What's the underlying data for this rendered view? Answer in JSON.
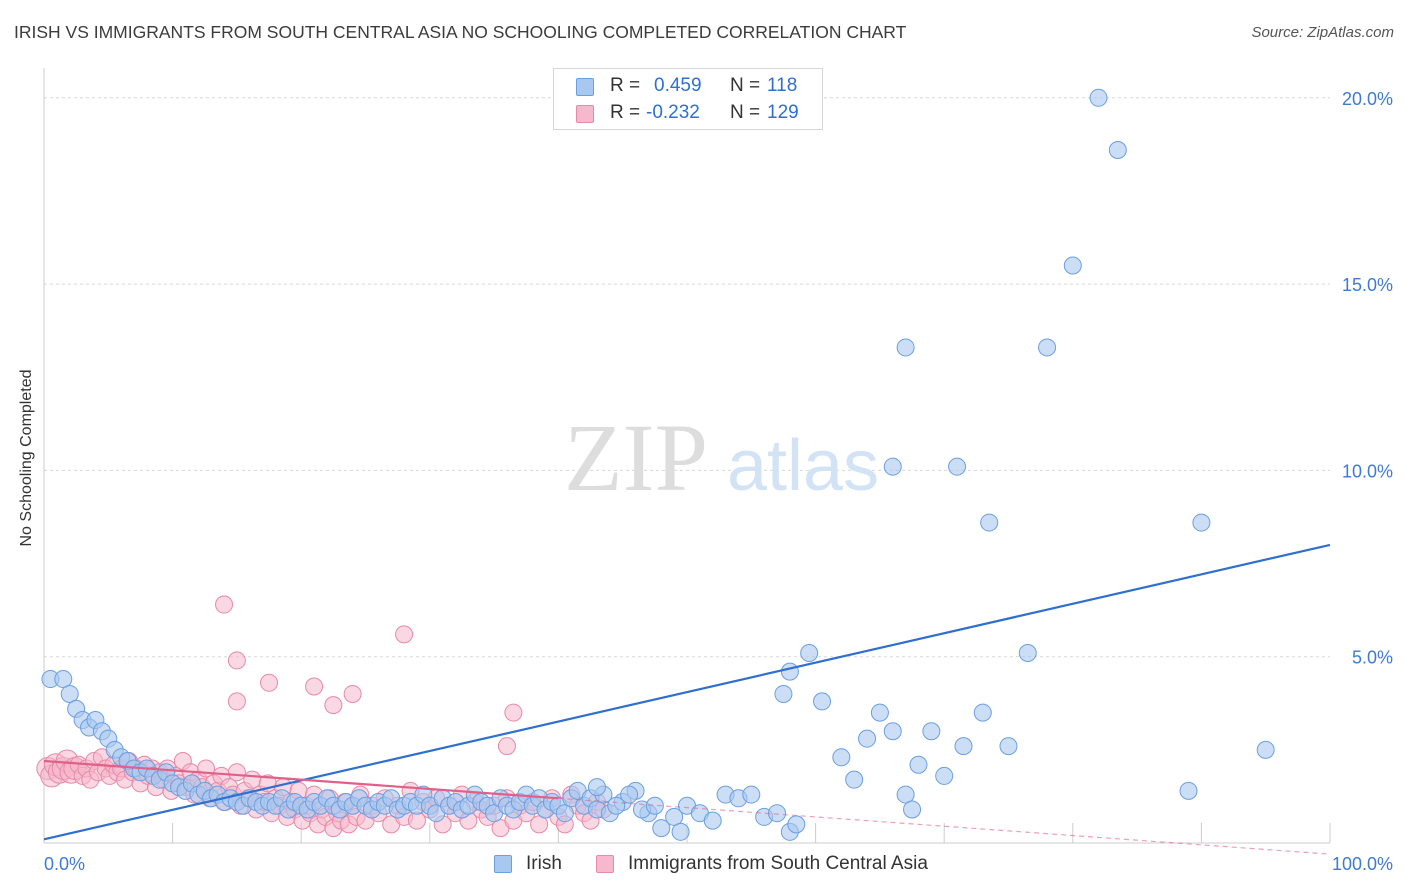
{
  "header": {
    "title": "IRISH VS IMMIGRANTS FROM SOUTH CENTRAL ASIA NO SCHOOLING COMPLETED CORRELATION CHART",
    "source": "Source: ZipAtlas.com"
  },
  "legend": {
    "rows": [
      {
        "r_label": "R =",
        "r_value": "0.459",
        "n_label": "N =",
        "n_value": "118"
      },
      {
        "r_label": "R =",
        "r_value": "-0.232",
        "n_label": "N =",
        "n_value": "129"
      }
    ],
    "bottom": [
      "Irish",
      "Immigrants from South Central Asia"
    ]
  },
  "watermark": {
    "zip": "ZIP",
    "atlas": "atlas"
  },
  "colors": {
    "irish_fill": "#a8c8f0",
    "irish_stroke": "#6a9fe0",
    "irish_line": "#2f6fd0",
    "imm_fill": "#f5b8cc",
    "imm_stroke": "#e889a8",
    "imm_line": "#e0608a",
    "axis_label": "#3f7ad3",
    "grid": "#d8d8d8"
  },
  "chart_data": {
    "type": "scatter",
    "title": "IRISH VS IMMIGRANTS FROM SOUTH CENTRAL ASIA NO SCHOOLING COMPLETED CORRELATION CHART",
    "xlabel": "",
    "ylabel": "No Schooling Completed",
    "xlim": [
      0,
      100
    ],
    "ylim": [
      0,
      20.8
    ],
    "x_tick_labels": [
      "0.0%",
      "100.0%"
    ],
    "y_ticks": [
      5,
      10,
      15,
      20
    ],
    "y_tick_labels": [
      "5.0%",
      "10.0%",
      "15.0%",
      "20.0%"
    ],
    "grid": true,
    "legend_position": "top-center",
    "series": [
      {
        "name": "Irish",
        "r": 0.459,
        "n": 118,
        "trend": {
          "x": [
            0,
            100
          ],
          "y": [
            0.1,
            8.0
          ]
        },
        "points": [
          [
            0.5,
            4.4
          ],
          [
            1.5,
            4.4
          ],
          [
            2,
            4.0
          ],
          [
            2.5,
            3.6
          ],
          [
            3,
            3.3
          ],
          [
            3.5,
            3.1
          ],
          [
            4,
            3.3
          ],
          [
            4.5,
            3.0
          ],
          [
            5,
            2.8
          ],
          [
            5.5,
            2.5
          ],
          [
            6,
            2.3
          ],
          [
            6.5,
            2.2
          ],
          [
            7,
            2.0
          ],
          [
            7.5,
            1.9
          ],
          [
            8,
            2.0
          ],
          [
            8.5,
            1.8
          ],
          [
            9,
            1.7
          ],
          [
            9.5,
            1.9
          ],
          [
            10,
            1.6
          ],
          [
            10.5,
            1.5
          ],
          [
            11,
            1.4
          ],
          [
            11.5,
            1.6
          ],
          [
            12,
            1.3
          ],
          [
            12.5,
            1.4
          ],
          [
            13,
            1.2
          ],
          [
            13.5,
            1.3
          ],
          [
            14,
            1.1
          ],
          [
            14.5,
            1.2
          ],
          [
            15,
            1.1
          ],
          [
            15.5,
            1.0
          ],
          [
            16,
            1.2
          ],
          [
            16.5,
            1.1
          ],
          [
            17,
            1.0
          ],
          [
            17.5,
            1.1
          ],
          [
            18,
            1.0
          ],
          [
            18.5,
            1.2
          ],
          [
            19,
            0.9
          ],
          [
            19.5,
            1.1
          ],
          [
            20,
            1.0
          ],
          [
            20.5,
            0.9
          ],
          [
            21,
            1.1
          ],
          [
            21.5,
            1.0
          ],
          [
            22,
            1.2
          ],
          [
            22.5,
            1.0
          ],
          [
            23,
            0.9
          ],
          [
            23.5,
            1.1
          ],
          [
            24,
            1.0
          ],
          [
            24.5,
            1.2
          ],
          [
            25,
            1.0
          ],
          [
            25.5,
            0.9
          ],
          [
            26,
            1.1
          ],
          [
            26.5,
            1.0
          ],
          [
            27,
            1.2
          ],
          [
            27.5,
            0.9
          ],
          [
            28,
            1.0
          ],
          [
            28.5,
            1.1
          ],
          [
            29,
            1.0
          ],
          [
            29.5,
            1.3
          ],
          [
            30,
            1.0
          ],
          [
            30.5,
            0.8
          ],
          [
            31,
            1.2
          ],
          [
            31.5,
            1.0
          ],
          [
            32,
            1.1
          ],
          [
            32.5,
            0.9
          ],
          [
            33,
            1.0
          ],
          [
            33.5,
            1.3
          ],
          [
            34,
            1.1
          ],
          [
            34.5,
            1.0
          ],
          [
            35,
            0.8
          ],
          [
            35.5,
            1.2
          ],
          [
            36,
            1.0
          ],
          [
            36.5,
            0.9
          ],
          [
            37,
            1.1
          ],
          [
            37.5,
            1.3
          ],
          [
            38,
            1.0
          ],
          [
            38.5,
            1.2
          ],
          [
            39,
            0.9
          ],
          [
            39.5,
            1.1
          ],
          [
            40,
            1.0
          ],
          [
            40.5,
            0.8
          ],
          [
            41,
            1.2
          ],
          [
            41.5,
            1.4
          ],
          [
            42,
            1.0
          ],
          [
            42.5,
            1.2
          ],
          [
            43,
            0.9
          ],
          [
            43.5,
            1.3
          ],
          [
            44,
            0.8
          ],
          [
            45,
            1.1
          ],
          [
            46,
            1.4
          ],
          [
            47,
            0.8
          ],
          [
            48,
            0.4
          ],
          [
            49,
            0.7
          ],
          [
            49.5,
            0.3
          ],
          [
            50,
            1.0
          ],
          [
            51,
            0.8
          ],
          [
            52,
            0.6
          ],
          [
            53,
            1.3
          ],
          [
            54,
            1.2
          ],
          [
            55,
            1.3
          ],
          [
            56,
            0.7
          ],
          [
            57,
            0.8
          ],
          [
            58,
            0.3
          ],
          [
            58.5,
            0.5
          ],
          [
            43,
            1.5
          ],
          [
            45.5,
            1.3
          ],
          [
            46.5,
            0.9
          ],
          [
            47.5,
            1.0
          ],
          [
            44.5,
            1.0
          ],
          [
            57.5,
            4.0
          ],
          [
            58,
            4.6
          ],
          [
            59.5,
            5.1
          ],
          [
            60.5,
            3.8
          ],
          [
            62,
            2.3
          ],
          [
            63,
            1.7
          ],
          [
            64,
            2.8
          ],
          [
            65,
            3.5
          ],
          [
            66,
            3.0
          ],
          [
            66,
            10.1
          ],
          [
            67,
            13.3
          ],
          [
            67,
            1.3
          ],
          [
            67.5,
            0.9
          ],
          [
            68,
            2.1
          ],
          [
            69,
            3.0
          ],
          [
            70,
            1.8
          ],
          [
            71,
            10.1
          ],
          [
            71.5,
            2.6
          ],
          [
            73,
            3.5
          ],
          [
            73.5,
            8.6
          ],
          [
            75,
            2.6
          ],
          [
            76.5,
            5.1
          ],
          [
            78,
            13.3
          ],
          [
            80,
            15.5
          ],
          [
            82,
            20.0
          ],
          [
            83.5,
            18.6
          ],
          [
            89,
            1.4
          ],
          [
            90,
            8.6
          ],
          [
            95,
            2.5
          ]
        ]
      },
      {
        "name": "Immigrants from South Central Asia",
        "r": -0.232,
        "n": 129,
        "trend": {
          "x": [
            0,
            40
          ],
          "y": [
            2.2,
            1.2
          ]
        },
        "trend_dashed": {
          "x": [
            40,
            100
          ],
          "y": [
            1.2,
            -0.3
          ]
        },
        "points": [
          [
            0.3,
            2.0
          ],
          [
            0.6,
            1.8
          ],
          [
            0.9,
            2.1
          ],
          [
            1.2,
            1.9
          ],
          [
            1.5,
            2.0
          ],
          [
            1.8,
            2.2
          ],
          [
            2.1,
            1.9
          ],
          [
            2.4,
            2.0
          ],
          [
            2.7,
            2.1
          ],
          [
            3.0,
            1.8
          ],
          [
            3.3,
            2.0
          ],
          [
            3.6,
            1.7
          ],
          [
            3.9,
            2.2
          ],
          [
            4.2,
            1.9
          ],
          [
            4.5,
            2.3
          ],
          [
            4.8,
            2.0
          ],
          [
            5.1,
            1.8
          ],
          [
            5.4,
            2.1
          ],
          [
            5.7,
            1.9
          ],
          [
            6.0,
            2.0
          ],
          [
            6.3,
            1.7
          ],
          [
            6.6,
            2.2
          ],
          [
            6.9,
            1.9
          ],
          [
            7.2,
            2.0
          ],
          [
            7.5,
            1.6
          ],
          [
            7.8,
            2.1
          ],
          [
            8.1,
            1.8
          ],
          [
            8.4,
            2.0
          ],
          [
            8.7,
            1.5
          ],
          [
            9.0,
            1.9
          ],
          [
            9.3,
            1.7
          ],
          [
            9.6,
            2.0
          ],
          [
            9.9,
            1.4
          ],
          [
            10.2,
            1.8
          ],
          [
            10.5,
            1.6
          ],
          [
            10.8,
            2.2
          ],
          [
            11.1,
            1.5
          ],
          [
            11.4,
            1.9
          ],
          [
            11.7,
            1.3
          ],
          [
            12.0,
            1.7
          ],
          [
            12.3,
            1.5
          ],
          [
            12.6,
            2.0
          ],
          [
            12.9,
            1.2
          ],
          [
            13.2,
            1.6
          ],
          [
            13.5,
            1.4
          ],
          [
            13.8,
            1.8
          ],
          [
            14.1,
            1.1
          ],
          [
            14.4,
            1.5
          ],
          [
            14.7,
            1.3
          ],
          [
            15.0,
            1.9
          ],
          [
            15.3,
            1.0
          ],
          [
            15.6,
            1.4
          ],
          [
            15.9,
            1.2
          ],
          [
            16.2,
            1.7
          ],
          [
            16.5,
            0.9
          ],
          [
            16.8,
            1.3
          ],
          [
            17.1,
            1.1
          ],
          [
            17.4,
            1.6
          ],
          [
            17.7,
            0.8
          ],
          [
            18.0,
            1.2
          ],
          [
            18.3,
            1.0
          ],
          [
            18.6,
            1.5
          ],
          [
            18.9,
            0.7
          ],
          [
            19.2,
            1.1
          ],
          [
            19.5,
            0.9
          ],
          [
            19.8,
            1.4
          ],
          [
            20.1,
            0.6
          ],
          [
            20.4,
            1.0
          ],
          [
            20.7,
            0.8
          ],
          [
            21.0,
            1.3
          ],
          [
            21.3,
            0.5
          ],
          [
            21.6,
            0.9
          ],
          [
            21.9,
            0.7
          ],
          [
            22.2,
            1.2
          ],
          [
            22.5,
            0.4
          ],
          [
            22.8,
            0.8
          ],
          [
            23.1,
            0.6
          ],
          [
            23.4,
            1.1
          ],
          [
            23.7,
            0.5
          ],
          [
            24.0,
            1.0
          ],
          [
            24.3,
            0.7
          ],
          [
            24.6,
            1.3
          ],
          [
            25.0,
            0.6
          ],
          [
            25.5,
            1.0
          ],
          [
            26.0,
            0.8
          ],
          [
            26.5,
            1.2
          ],
          [
            27.0,
            0.5
          ],
          [
            27.5,
            1.0
          ],
          [
            28.0,
            0.7
          ],
          [
            28.5,
            1.4
          ],
          [
            29.0,
            0.6
          ],
          [
            29.5,
            1.1
          ],
          [
            30.0,
            0.9
          ],
          [
            30.5,
            1.2
          ],
          [
            31.0,
            0.5
          ],
          [
            31.5,
            1.0
          ],
          [
            32.0,
            0.8
          ],
          [
            32.5,
            1.3
          ],
          [
            33.0,
            0.6
          ],
          [
            33.5,
            1.1
          ],
          [
            34.0,
            0.9
          ],
          [
            34.5,
            0.7
          ],
          [
            35.0,
            1.0
          ],
          [
            35.5,
            0.4
          ],
          [
            36.0,
            1.2
          ],
          [
            36.5,
            0.6
          ],
          [
            37.0,
            1.0
          ],
          [
            37.5,
            0.8
          ],
          [
            38.0,
            1.1
          ],
          [
            38.5,
            0.5
          ],
          [
            39.0,
            0.9
          ],
          [
            39.5,
            1.2
          ],
          [
            40.0,
            0.7
          ],
          [
            40.5,
            0.5
          ],
          [
            41.0,
            1.3
          ],
          [
            41.5,
            1.0
          ],
          [
            42.0,
            0.8
          ],
          [
            42.5,
            0.6
          ],
          [
            43.0,
            1.1
          ],
          [
            43.5,
            0.9
          ],
          [
            14.0,
            6.4
          ],
          [
            15.0,
            4.9
          ],
          [
            15.0,
            3.8
          ],
          [
            17.5,
            4.3
          ],
          [
            21.0,
            4.2
          ],
          [
            22.5,
            3.7
          ],
          [
            24.0,
            4.0
          ],
          [
            28.0,
            5.6
          ],
          [
            36.5,
            3.5
          ],
          [
            36.0,
            2.6
          ]
        ]
      }
    ]
  }
}
